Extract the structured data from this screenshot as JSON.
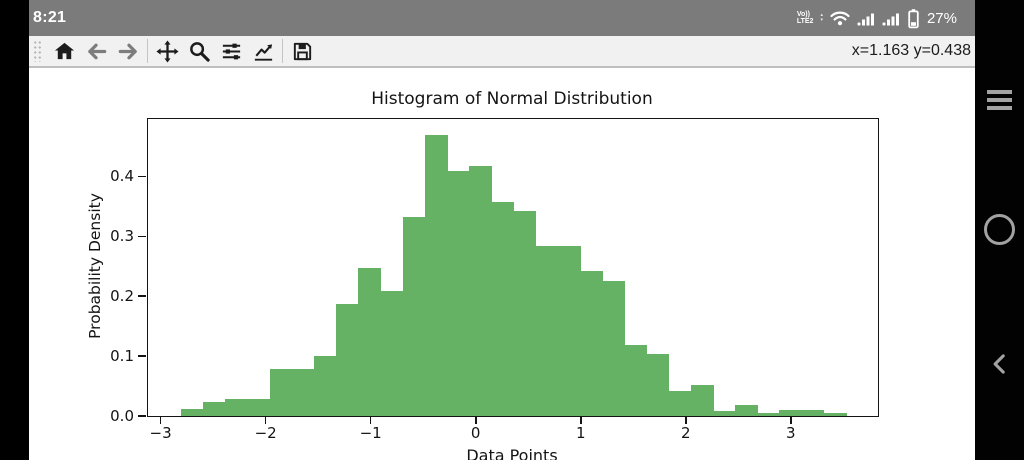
{
  "status_bar": {
    "time": "8:21",
    "volte_top": "Vo))",
    "volte_bottom": "LTE2",
    "battery_percent": "27%",
    "icons": [
      "volte-icon",
      "wifi-icon",
      "signal-icon",
      "signal-icon",
      "battery-icon"
    ]
  },
  "toolbar": {
    "buttons": [
      {
        "name": "home",
        "icon": "home-icon"
      },
      {
        "name": "back",
        "icon": "back-arrow-icon"
      },
      {
        "name": "forward",
        "icon": "forward-arrow-icon"
      },
      {
        "name": "pan",
        "icon": "pan-arrows-icon"
      },
      {
        "name": "zoom",
        "icon": "magnifier-icon"
      },
      {
        "name": "subplots",
        "icon": "sliders-icon"
      },
      {
        "name": "customize",
        "icon": "line-chart-icon"
      },
      {
        "name": "save",
        "icon": "floppy-disk-icon"
      }
    ],
    "coordinates_readout": "x=1.163 y=0.438"
  },
  "nav_bar": {
    "buttons": [
      "menu",
      "home",
      "back"
    ]
  },
  "chart_data": {
    "type": "bar",
    "subtype": "histogram",
    "title": "Histogram of Normal Distribution",
    "xlabel": "Data Points",
    "ylabel": "Probability Density",
    "bar_color": "#65b265",
    "axis_color": "#141414",
    "grid": false,
    "legend": null,
    "xlim": [
      -3.12,
      3.83
    ],
    "ylim": [
      0,
      0.496
    ],
    "xticks": [
      -3,
      -2,
      -1,
      0,
      1,
      2,
      3
    ],
    "xtick_labels": [
      "−3",
      "−2",
      "−1",
      "0",
      "1",
      "2",
      "3"
    ],
    "yticks": [
      0.0,
      0.1,
      0.2,
      0.3,
      0.4
    ],
    "bin_start": -2.805,
    "bin_width": 0.211,
    "values": [
      0.0125,
      0.024,
      0.028,
      0.028,
      0.078,
      0.078,
      0.1,
      0.187,
      0.248,
      0.208,
      0.333,
      0.47,
      0.409,
      0.418,
      0.357,
      0.343,
      0.284,
      0.284,
      0.243,
      0.226,
      0.118,
      0.104,
      0.042,
      0.052,
      0.008,
      0.019,
      0.005,
      0.01,
      0.01,
      0.005
    ]
  }
}
